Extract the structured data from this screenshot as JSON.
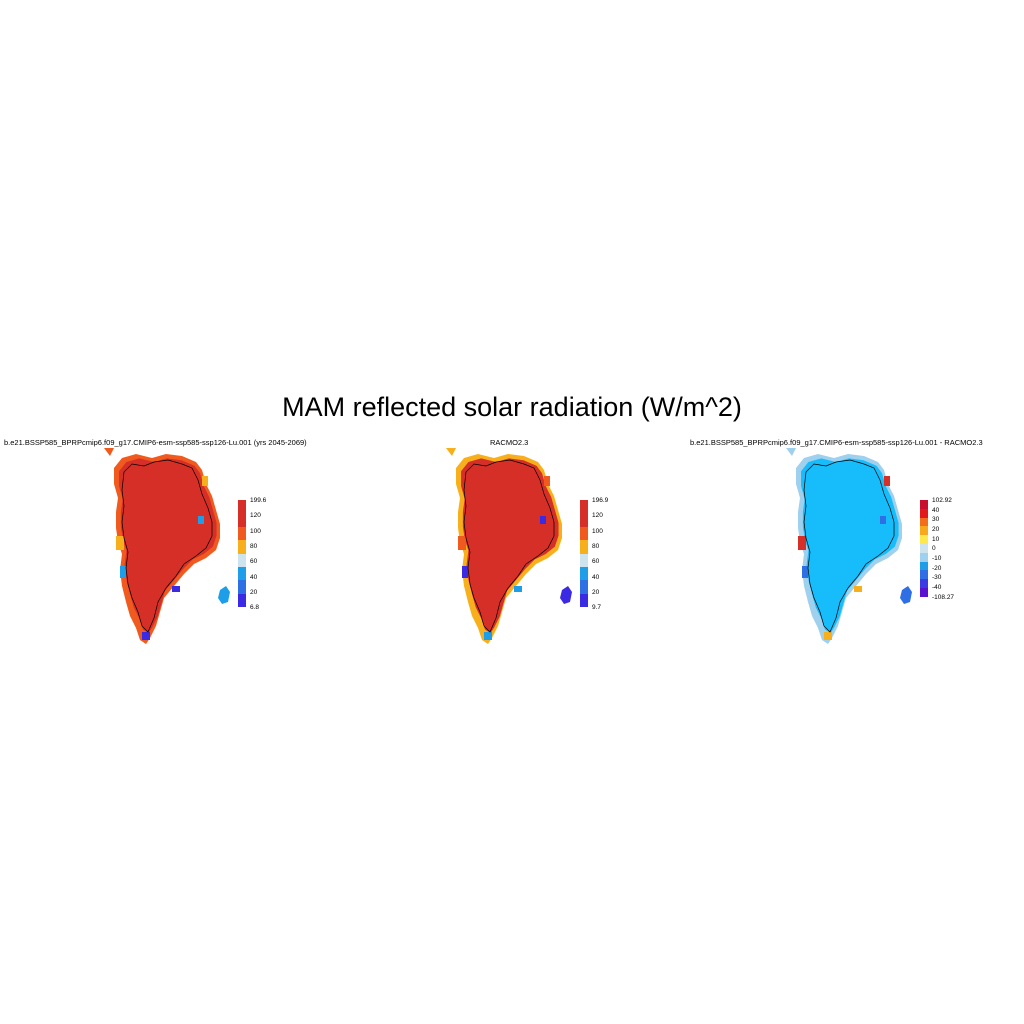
{
  "title": "MAM reflected solar radiation (W/m^2)",
  "panels": [
    {
      "title": "b.e21.BSSP585_BPRPcmip6.f09_g17.CMIP6-esm-ssp585-ssp126-Lu.001 (yrs 2045-2069)",
      "colorbar_labels": [
        "199.6",
        "120",
        "100",
        "80",
        "60",
        "40",
        "20",
        "6.8"
      ],
      "colorbar_colors": [
        "#d62f27",
        "#d62f27",
        "#f05a1e",
        "#f7b01b",
        "#cde4ee",
        "#1e9ee8",
        "#2f6fe6",
        "#3b2ae4"
      ],
      "fill_color": "#d62f27",
      "edge_color": "#f05a1e",
      "accent_colors": [
        "#f7b01b",
        "#1e9ee8",
        "#3b2ae4"
      ]
    },
    {
      "title": "RACMO2.3",
      "colorbar_labels": [
        "196.9",
        "120",
        "100",
        "80",
        "60",
        "40",
        "20",
        "9.7"
      ],
      "colorbar_colors": [
        "#d62f27",
        "#d62f27",
        "#f05a1e",
        "#f7b01b",
        "#cde4ee",
        "#1e9ee8",
        "#2f6fe6",
        "#3b2ae4"
      ],
      "fill_color": "#d62f27",
      "edge_color": "#f7b01b",
      "accent_colors": [
        "#f05a1e",
        "#3b2ae4",
        "#1e9ee8"
      ]
    },
    {
      "title": "b.e21.BSSP585_BPRPcmip6.f09_g17.CMIP6-esm-ssp585-ssp126-Lu.001 - RACMO2.3",
      "colorbar_labels": [
        "102.92",
        "40",
        "30",
        "20",
        "10",
        "0",
        "-10",
        "-20",
        "-30",
        "-40",
        "-108.27"
      ],
      "colorbar_colors": [
        "#c8102e",
        "#e31a1c",
        "#f46d1b",
        "#f7a81b",
        "#ffe84a",
        "#cde4ee",
        "#9fd0ee",
        "#1e9ee8",
        "#2f6fe6",
        "#3b3ae4",
        "#5a10d0"
      ],
      "fill_color": "#17bdfb",
      "edge_color": "#9fd0ee",
      "accent_colors": [
        "#d62f27",
        "#2f6fe6",
        "#f7b01b"
      ]
    }
  ]
}
